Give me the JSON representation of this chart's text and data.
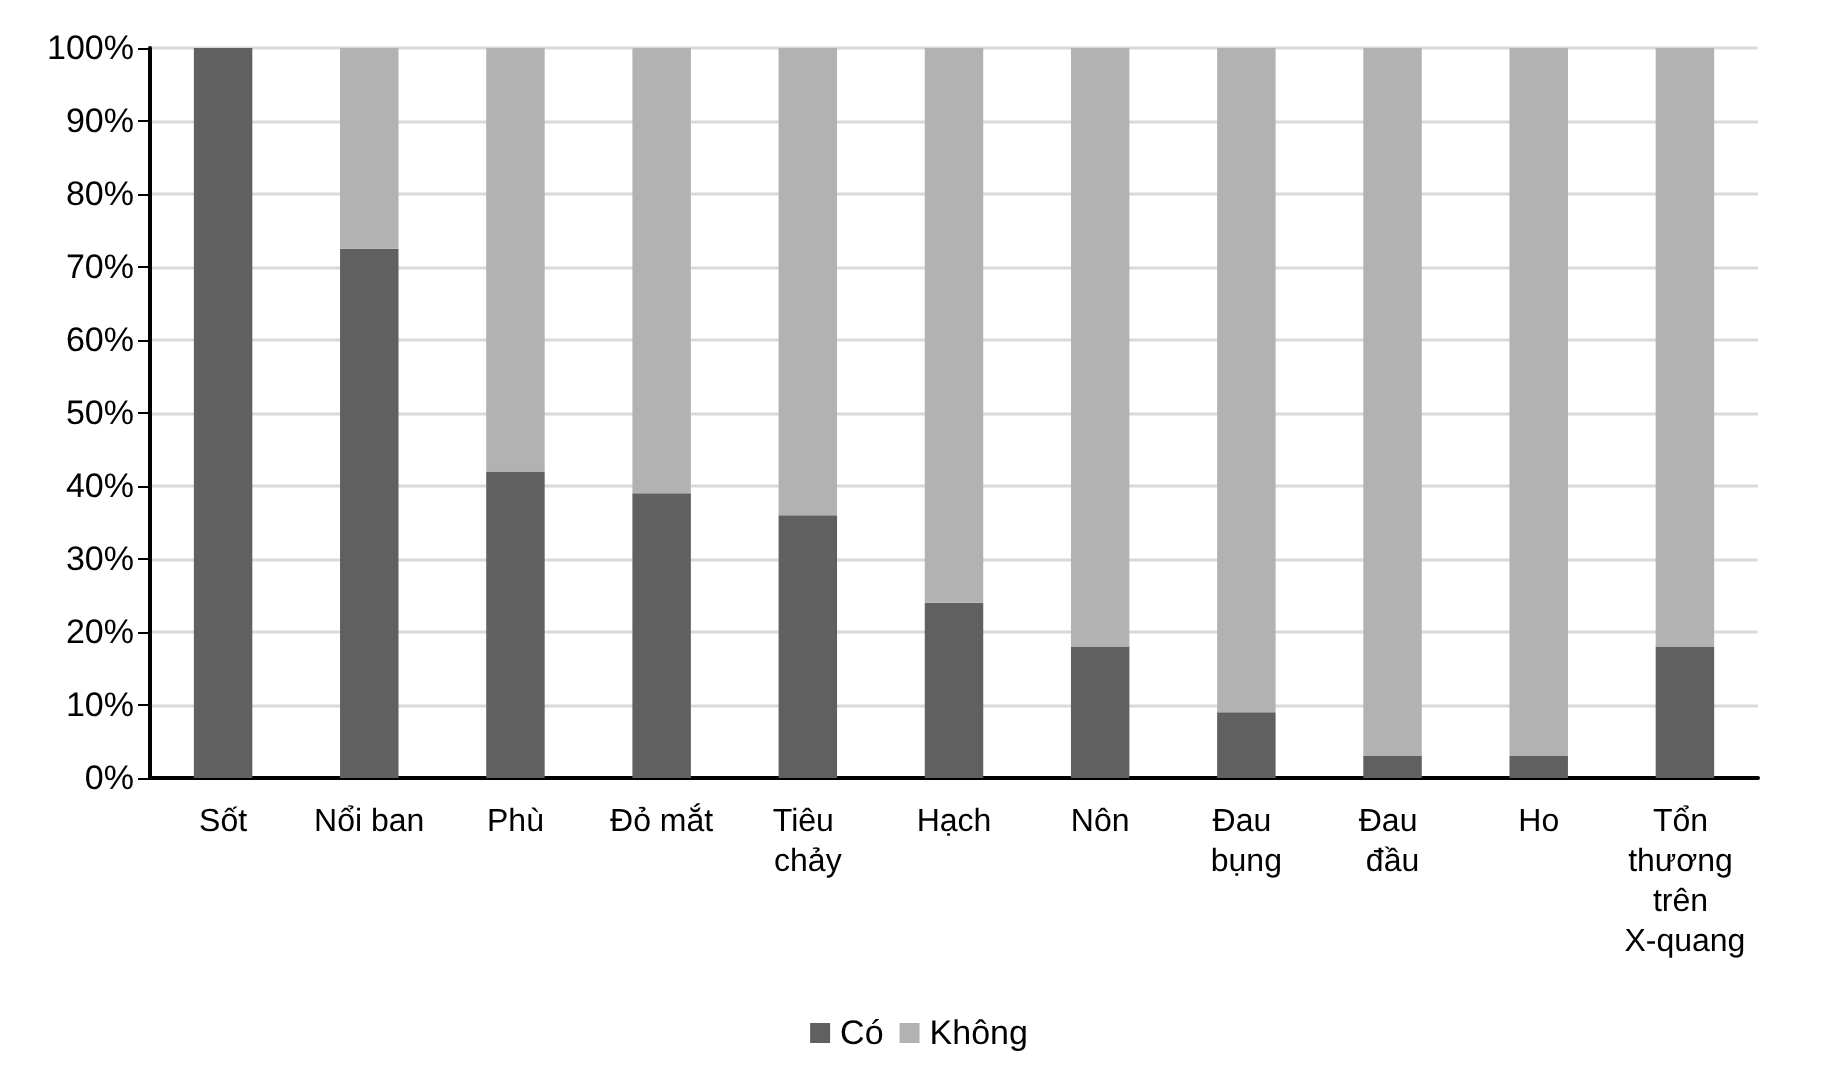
{
  "chart_data": {
    "type": "bar",
    "stacked": true,
    "categories": [
      "Sốt",
      "Nổi ban",
      "Phù",
      "Đỏ mắt",
      "Tiêu chảy",
      "Hạch",
      "Nôn",
      "Đau bụng",
      "Đau đầu",
      "Ho",
      "Tổn thương trên X-quang"
    ],
    "series": [
      {
        "name": "Có",
        "color": "#606060",
        "values": [
          100,
          72.5,
          42,
          39,
          36,
          24,
          18,
          9,
          3,
          3,
          18
        ]
      },
      {
        "name": "Không",
        "color": "#b2b2b2",
        "values": [
          0,
          27.5,
          58,
          61,
          64,
          76,
          82,
          91,
          97,
          97,
          82
        ]
      }
    ],
    "ylim": [
      0,
      100
    ],
    "yticks": [
      {
        "value": 0,
        "label": "0%"
      },
      {
        "value": 10,
        "label": "10%"
      },
      {
        "value": 20,
        "label": "20%"
      },
      {
        "value": 30,
        "label": "30%"
      },
      {
        "value": 40,
        "label": "40%"
      },
      {
        "value": 50,
        "label": "50%"
      },
      {
        "value": 60,
        "label": "60%"
      },
      {
        "value": 70,
        "label": "70%"
      },
      {
        "value": 80,
        "label": "80%"
      },
      {
        "value": 90,
        "label": "90%"
      },
      {
        "value": 100,
        "label": "100%"
      }
    ],
    "grid": "y",
    "legend": "bottom"
  }
}
